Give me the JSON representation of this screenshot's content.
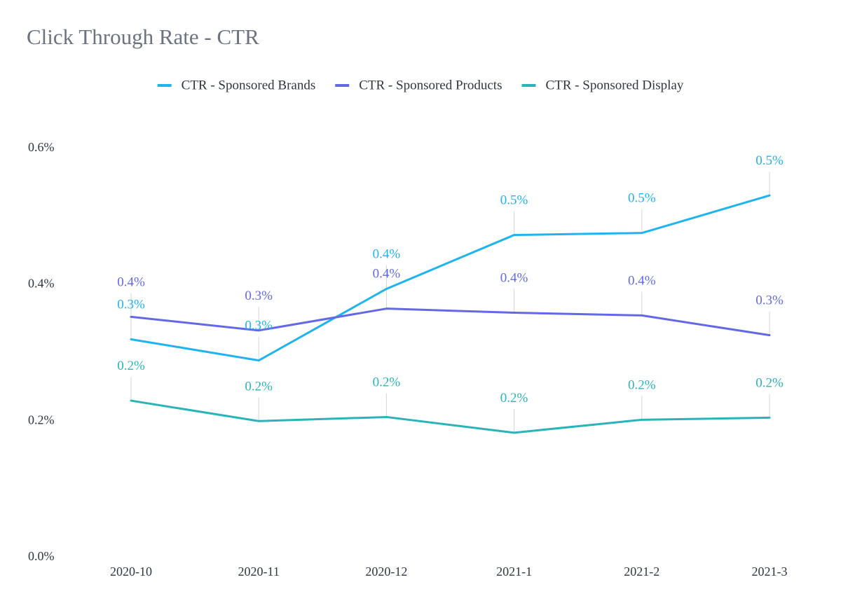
{
  "chart_data": {
    "type": "line",
    "title": "Click Through Rate - CTR",
    "xlabel": "",
    "ylabel": "",
    "categories": [
      "2020-10",
      "2020-11",
      "2020-12",
      "2021-1",
      "2021-2",
      "2021-3"
    ],
    "ylim": [
      0,
      0.6
    ],
    "yticks": [
      0,
      0.2,
      0.4,
      0.6
    ],
    "ytick_labels": [
      "0.0%",
      "0.2%",
      "0.4%",
      "0.6%"
    ],
    "legend_position": "top-center",
    "grid": false,
    "series": [
      {
        "name": "CTR - Sponsored Brands",
        "color": "#1fb3f0",
        "values": [
          0.318,
          0.287,
          0.392,
          0.471,
          0.474,
          0.529
        ],
        "labels": [
          "0.3%",
          "0.3%",
          "0.4%",
          "0.5%",
          "0.5%",
          "0.5%"
        ]
      },
      {
        "name": "CTR - Sponsored Products",
        "color": "#6368e6",
        "values": [
          0.351,
          0.331,
          0.363,
          0.357,
          0.353,
          0.324
        ],
        "labels": [
          "0.4%",
          "0.3%",
          "0.4%",
          "0.4%",
          "0.4%",
          "0.3%"
        ]
      },
      {
        "name": "CTR - Sponsored Display",
        "color": "#2bb3ba",
        "values": [
          0.228,
          0.198,
          0.204,
          0.181,
          0.2,
          0.203
        ],
        "labels": [
          "0.2%",
          "0.2%",
          "0.2%",
          "0.2%",
          "0.2%",
          "0.2%"
        ]
      }
    ]
  }
}
